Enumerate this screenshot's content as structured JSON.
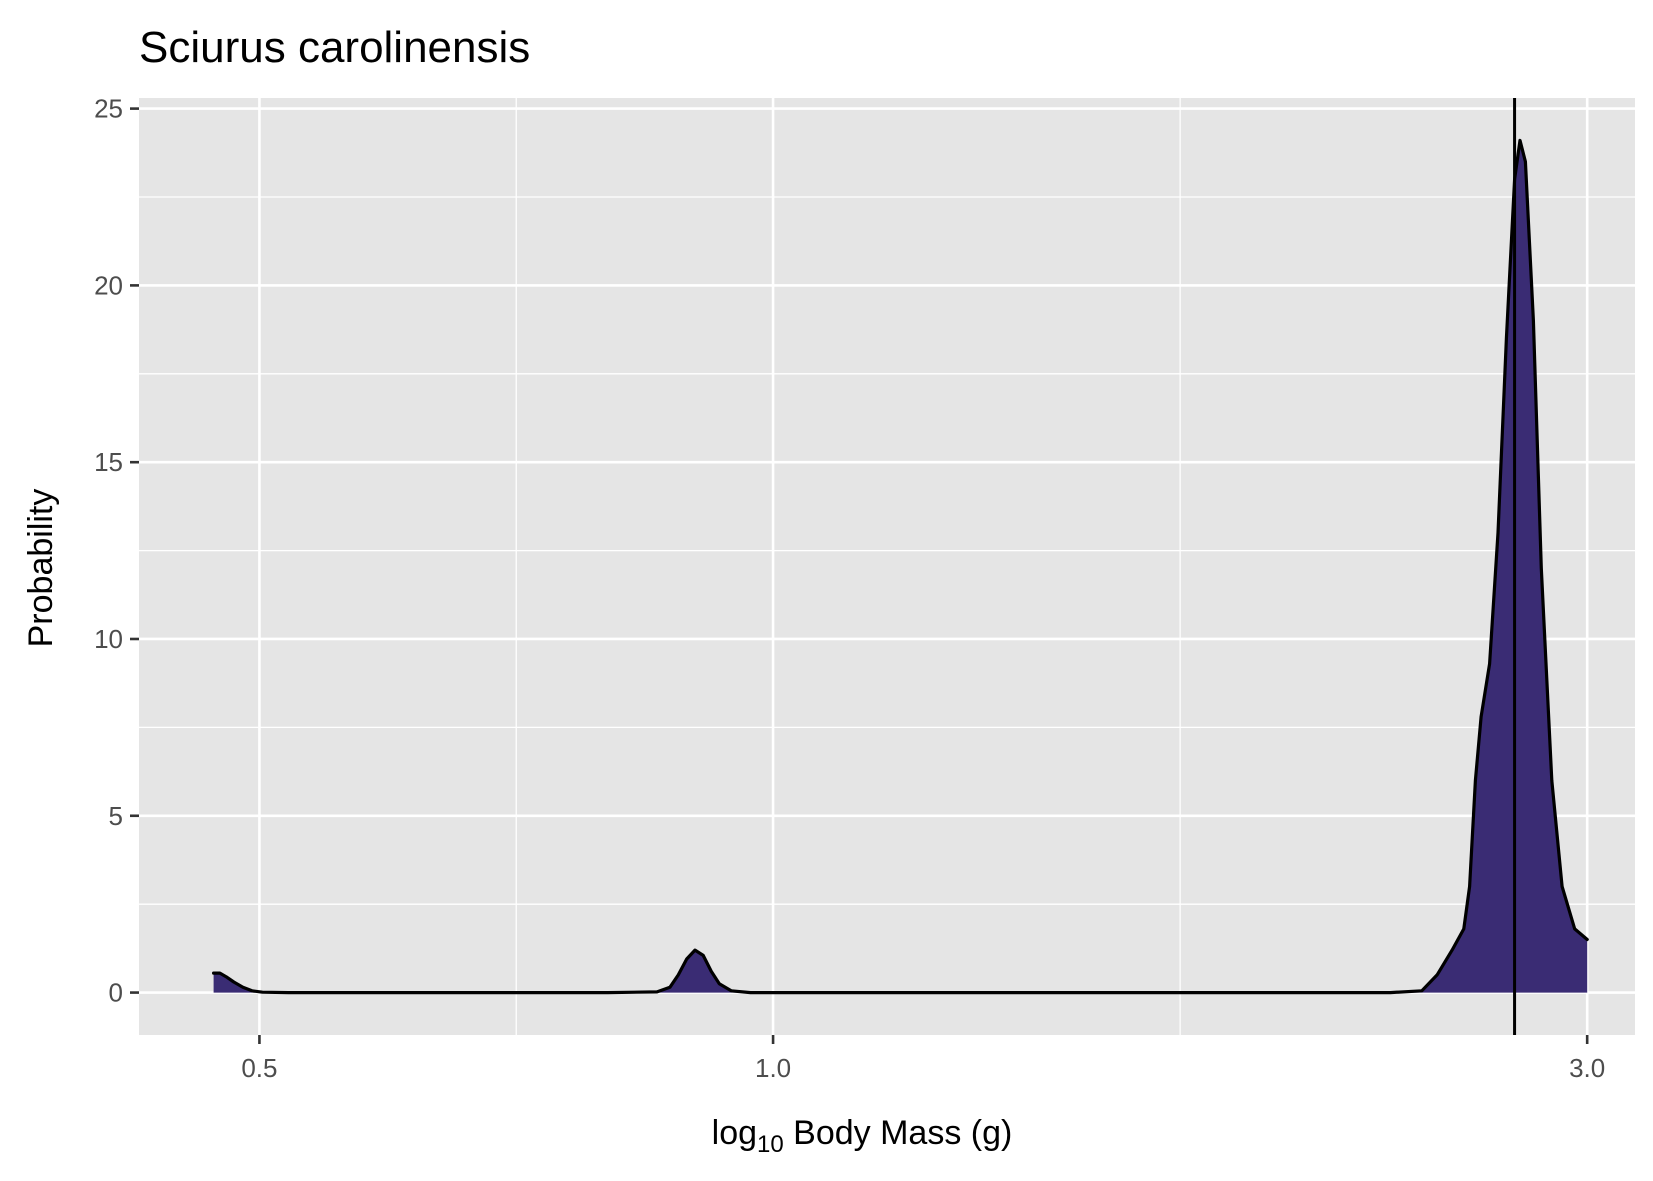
{
  "chart_data": {
    "type": "area",
    "title": "Sciurus carolinensis",
    "xlabel": {
      "prefix": "log",
      "subscript": "10",
      "suffix": " Body Mass (g)"
    },
    "ylabel": "Probability",
    "x_ticks": [
      {
        "value": 0.5,
        "label": "0.5"
      },
      {
        "value": 1.0,
        "label": "1.0"
      },
      {
        "value": 3.0,
        "label": "3.0"
      }
    ],
    "y_ticks": [
      {
        "value": 0,
        "label": "0"
      },
      {
        "value": 5,
        "label": "5"
      },
      {
        "value": 10,
        "label": "10"
      },
      {
        "value": 15,
        "label": "15"
      },
      {
        "value": 20,
        "label": "20"
      },
      {
        "value": 25,
        "label": "25"
      }
    ],
    "ylim": [
      -1.2,
      25.3
    ],
    "x_scale": "log",
    "x_range": [
      0.425,
      3.2
    ],
    "grid": true,
    "reference_line_x": 2.72,
    "fill_color": "#3a2c74",
    "line_color": "#000000",
    "panel_color": "#e5e5e5",
    "series": [
      {
        "values": [
          [
            0.47,
            0.55
          ],
          [
            0.474,
            0.55
          ],
          [
            0.478,
            0.45
          ],
          [
            0.483,
            0.3
          ],
          [
            0.489,
            0.15
          ],
          [
            0.495,
            0.05
          ],
          [
            0.502,
            0.01
          ],
          [
            0.52,
            0.0
          ],
          [
            0.6,
            0.0
          ],
          [
            0.7,
            0.0
          ],
          [
            0.8,
            0.0
          ],
          [
            0.855,
            0.02
          ],
          [
            0.87,
            0.15
          ],
          [
            0.88,
            0.5
          ],
          [
            0.89,
            0.95
          ],
          [
            0.9,
            1.2
          ],
          [
            0.91,
            1.05
          ],
          [
            0.92,
            0.6
          ],
          [
            0.93,
            0.25
          ],
          [
            0.945,
            0.05
          ],
          [
            0.97,
            0.0
          ],
          [
            1.2,
            0.0
          ],
          [
            1.5,
            0.0
          ],
          [
            2.0,
            0.0
          ],
          [
            2.3,
            0.0
          ],
          [
            2.4,
            0.05
          ],
          [
            2.45,
            0.5
          ],
          [
            2.5,
            1.2
          ],
          [
            2.54,
            1.8
          ],
          [
            2.56,
            3.0
          ],
          [
            2.58,
            6.0
          ],
          [
            2.6,
            7.8
          ],
          [
            2.63,
            9.3
          ],
          [
            2.66,
            13.0
          ],
          [
            2.69,
            18.5
          ],
          [
            2.72,
            23.0
          ],
          [
            2.74,
            24.1
          ],
          [
            2.76,
            23.5
          ],
          [
            2.79,
            19.0
          ],
          [
            2.82,
            12.0
          ],
          [
            2.86,
            6.0
          ],
          [
            2.9,
            3.0
          ],
          [
            2.95,
            1.8
          ],
          [
            3.0,
            1.5
          ]
        ]
      }
    ]
  }
}
